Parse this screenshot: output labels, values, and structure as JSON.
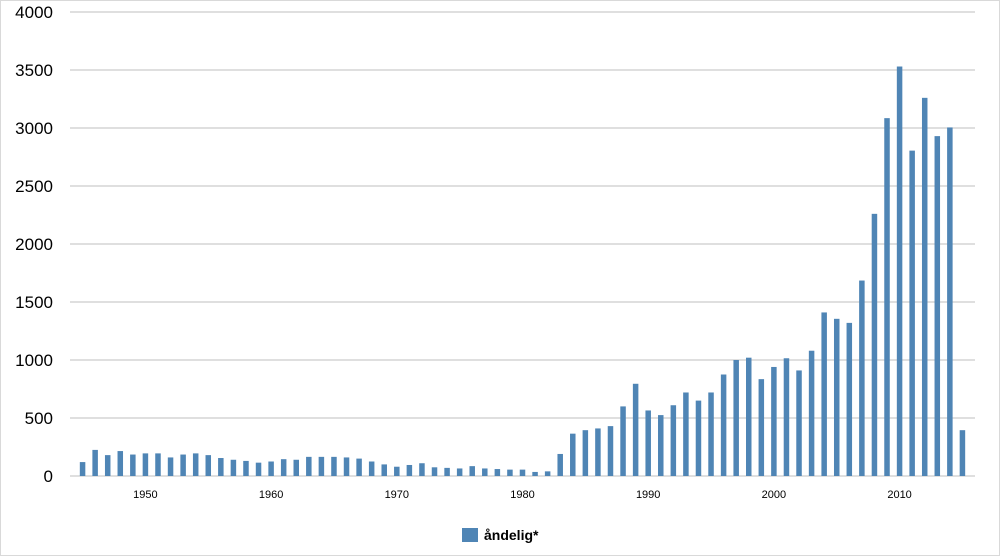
{
  "chart_data": {
    "type": "bar",
    "title": "",
    "xlabel": "",
    "ylabel": "",
    "ylim": [
      0,
      4000
    ],
    "yticks": [
      0,
      500,
      1000,
      1500,
      2000,
      2500,
      3000,
      3500,
      4000
    ],
    "xticks": [
      1950,
      1960,
      1970,
      1980,
      1990,
      2000,
      2010
    ],
    "xrange": [
      1944,
      2016
    ],
    "grid": "horizontal",
    "legend_position": "bottom",
    "bar_color": "#4f85b5",
    "series": [
      {
        "name": "åndelig*",
        "x": [
          1945,
          1946,
          1947,
          1948,
          1949,
          1950,
          1951,
          1952,
          1953,
          1954,
          1955,
          1956,
          1957,
          1958,
          1959,
          1960,
          1961,
          1962,
          1963,
          1964,
          1965,
          1966,
          1967,
          1968,
          1969,
          1970,
          1971,
          1972,
          1973,
          1974,
          1975,
          1976,
          1977,
          1978,
          1979,
          1980,
          1981,
          1982,
          1983,
          1984,
          1985,
          1986,
          1987,
          1988,
          1989,
          1990,
          1991,
          1992,
          1993,
          1994,
          1995,
          1996,
          1997,
          1998,
          1999,
          2000,
          2001,
          2002,
          2003,
          2004,
          2005,
          2006,
          2007,
          2008,
          2009,
          2010,
          2011,
          2012,
          2013,
          2014,
          2015
        ],
        "values": [
          120,
          225,
          180,
          215,
          185,
          195,
          195,
          160,
          185,
          195,
          180,
          155,
          140,
          130,
          115,
          125,
          145,
          140,
          165,
          165,
          165,
          160,
          150,
          125,
          100,
          80,
          95,
          110,
          75,
          70,
          65,
          85,
          65,
          60,
          55,
          55,
          35,
          40,
          190,
          365,
          395,
          410,
          430,
          600,
          795,
          565,
          525,
          610,
          720,
          650,
          720,
          875,
          1000,
          1020,
          835,
          940,
          1015,
          910,
          1080,
          1410,
          1355,
          1320,
          1685,
          2260,
          3085,
          3530,
          2805,
          3260,
          2930,
          3005,
          395
        ]
      }
    ]
  }
}
